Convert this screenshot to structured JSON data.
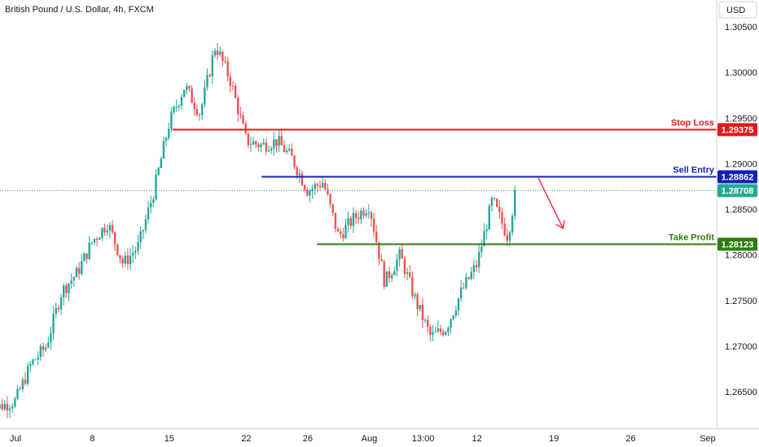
{
  "chart_data": {
    "type": "candlestick",
    "title": "British Pound / U.S. Dollar, 4h, FXCM",
    "currency": "USD",
    "y_ticks": [
      "1.30500",
      "1.30000",
      "1.29500",
      "1.29000",
      "1.28500",
      "1.28000",
      "1.27500",
      "1.27000",
      "1.26500"
    ],
    "ylim": [
      1.2615,
      1.3085
    ],
    "x_ticks": [
      {
        "label": "Jul",
        "t": 0
      },
      {
        "label": "8",
        "t": 5
      },
      {
        "label": "15",
        "t": 10
      },
      {
        "label": "22",
        "t": 15
      },
      {
        "label": "26",
        "t": 19
      },
      {
        "label": "Aug",
        "t": 23
      },
      {
        "label": "13:00",
        "t": 26.5
      },
      {
        "label": "12",
        "t": 30
      },
      {
        "label": "19",
        "t": 35
      },
      {
        "label": "26",
        "t": 40
      },
      {
        "label": "Sep",
        "t": 45
      }
    ],
    "x_range": [
      -1.7,
      46.5
    ],
    "price_path": [
      [
        -1.7,
        1.263
      ],
      [
        0,
        1.264
      ],
      [
        1,
        1.268
      ],
      [
        2,
        1.27
      ],
      [
        3,
        1.276
      ],
      [
        4,
        1.278
      ],
      [
        5,
        1.2815
      ],
      [
        6,
        1.2835
      ],
      [
        7,
        1.279
      ],
      [
        8,
        1.281
      ],
      [
        9,
        1.287
      ],
      [
        10,
        1.2945
      ],
      [
        11,
        1.2985
      ],
      [
        12,
        1.2955
      ],
      [
        13,
        1.303
      ],
      [
        14,
        1.299
      ],
      [
        15,
        1.2925
      ],
      [
        16,
        1.292
      ],
      [
        17,
        1.2925
      ],
      [
        18,
        1.2905
      ],
      [
        19,
        1.287
      ],
      [
        20,
        1.288
      ],
      [
        21,
        1.282
      ],
      [
        22,
        1.284
      ],
      [
        23,
        1.2855
      ],
      [
        24,
        1.277
      ],
      [
        25,
        1.28
      ],
      [
        26,
        1.275
      ],
      [
        27,
        1.271
      ],
      [
        28,
        1.272
      ],
      [
        29,
        1.276
      ],
      [
        30,
        1.279
      ],
      [
        31,
        1.286
      ],
      [
        32,
        1.282
      ],
      [
        32.5,
        1.2868
      ]
    ],
    "levels": [
      {
        "name": "Stop Loss",
        "value": "1.29375",
        "color": "#e0191c",
        "start_t": 10.2
      },
      {
        "name": "Sell Entry",
        "value": "1.28862",
        "color": "#1620b8",
        "start_t": 16.0
      },
      {
        "name": "Take Profit",
        "value": "1.28123",
        "color": "#2e7d12",
        "start_t": 19.6
      }
    ],
    "current_price": {
      "value": "1.28708",
      "color": "#22ab94"
    },
    "arrow": {
      "from_t": 34.0,
      "from_price": 1.2884,
      "to_t": 35.6,
      "to_price": 1.2829,
      "color": "#f23645"
    },
    "colors": {
      "up": "#26a69a",
      "down": "#ef5350"
    }
  }
}
